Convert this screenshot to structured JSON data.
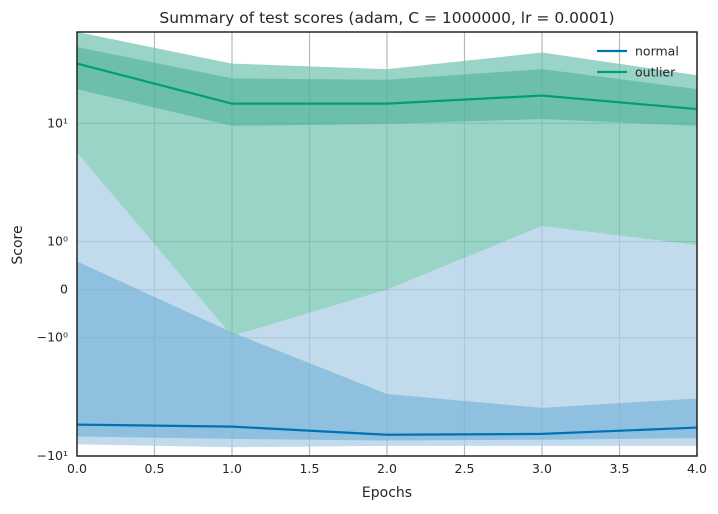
{
  "chart_data": {
    "type": "line",
    "title": "Summary of test scores (adam, C = 1000000, lr = 0.0001)",
    "xlabel": "Epochs",
    "ylabel": "Score",
    "y_scale": "symlog",
    "xlim": [
      0,
      4
    ],
    "ylim": [
      -10,
      40
    ],
    "x_ticks": [
      "0.0",
      "0.5",
      "1.0",
      "1.5",
      "2.0",
      "2.5",
      "3.0",
      "3.5",
      "4.0"
    ],
    "y_ticks": [
      {
        "value": 10,
        "label": "10¹"
      },
      {
        "value": 1,
        "label": "10⁰"
      },
      {
        "value": 0,
        "label": "0"
      },
      {
        "value": -1,
        "label": "−10⁰"
      },
      {
        "value": -10,
        "label": "−10¹"
      }
    ],
    "grid": true,
    "legend": {
      "position": "top-right",
      "entries": [
        "normal",
        "outlier"
      ]
    },
    "x": [
      0,
      1,
      2,
      3,
      4
    ],
    "series": [
      {
        "name": "normal",
        "color": "#0072b2",
        "values": [
          -6.0,
          -6.2,
          -7.1,
          -7.0,
          -6.3
        ],
        "inner_band": {
          "lower": [
            -7.3,
            -7.6,
            -7.8,
            -7.7,
            -7.5
          ],
          "upper": [
            0.5,
            -0.85,
            -3.5,
            -4.5,
            -3.8
          ]
        },
        "outer_band": {
          "lower": [
            -8.3,
            -8.7,
            -8.5,
            -8.5,
            -8.5
          ],
          "upper": [
            6.2,
            -0.95,
            0.0,
            1.5,
            0.9
          ]
        }
      },
      {
        "name": "outlier",
        "color": "#009e73",
        "values": [
          25.0,
          13.6,
          13.6,
          15.4,
          12.5
        ],
        "inner_band": {
          "lower": [
            17.0,
            9.6,
            9.9,
            10.7,
            9.6
          ],
          "upper": [
            32.0,
            20.0,
            19.6,
            23.0,
            17.0
          ]
        },
        "outer_band": {
          "lower": [
            6.2,
            -0.95,
            0.0,
            1.5,
            0.9
          ],
          "upper": [
            40.0,
            25.0,
            23.0,
            29.5,
            21.0
          ]
        }
      }
    ]
  }
}
